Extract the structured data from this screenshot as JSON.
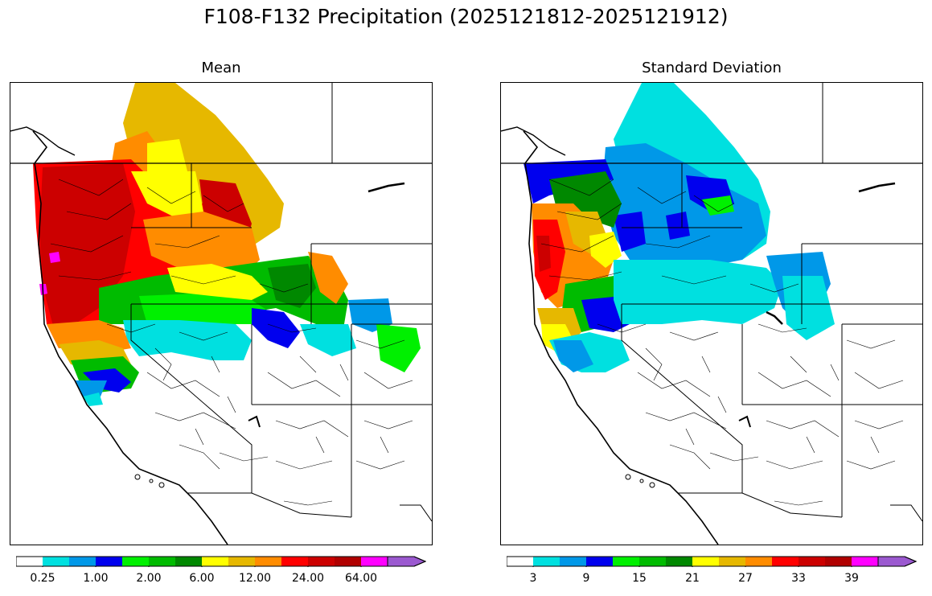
{
  "title": "F108-F132 Precipitation (2025121812-2025121912)",
  "panels": [
    {
      "subtitle": "Mean",
      "colorbar": {
        "colors": [
          "#ffffff",
          "#00e0e0",
          "#0098e8",
          "#0000ee",
          "#00f000",
          "#00bb00",
          "#008800",
          "#ffff00",
          "#e6b800",
          "#ff8c00",
          "#ff0000",
          "#cc0000",
          "#b00000",
          "#ff00ff",
          "#9b59d0"
        ],
        "labels": [
          "0.25",
          "1.00",
          "2.00",
          "6.00",
          "12.00",
          "24.00",
          "64.00"
        ],
        "extend": "max"
      }
    },
    {
      "subtitle": "Standard Deviation",
      "colorbar": {
        "colors": [
          "#ffffff",
          "#00e0e0",
          "#0098e8",
          "#0000ee",
          "#00f000",
          "#00bb00",
          "#008800",
          "#ffff00",
          "#e6b800",
          "#ff8c00",
          "#ff0000",
          "#cc0000",
          "#b00000",
          "#ff00ff",
          "#9b59d0"
        ],
        "labels": [
          "3",
          "9",
          "15",
          "21",
          "27",
          "33",
          "39"
        ],
        "extend": "max"
      }
    }
  ]
}
